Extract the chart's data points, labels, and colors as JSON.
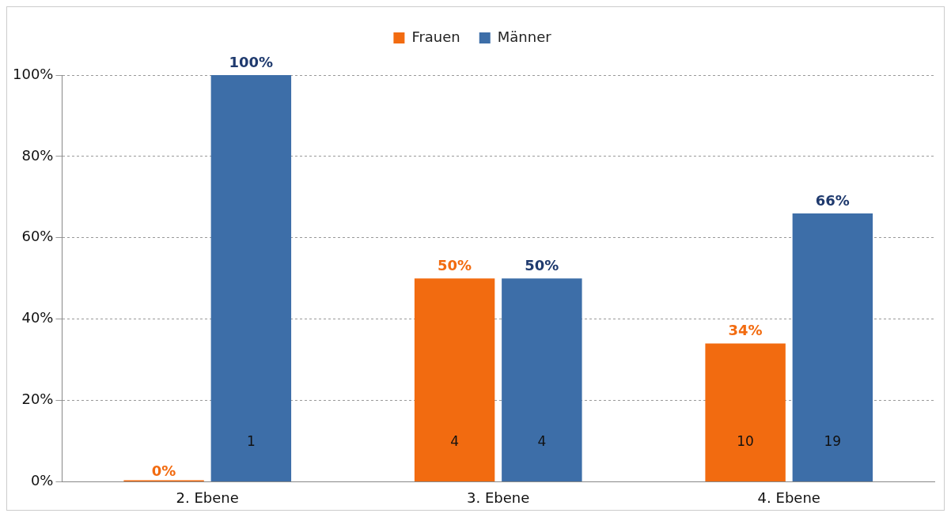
{
  "chart_data": {
    "type": "bar",
    "categories": [
      "2. Ebene",
      "3. Ebene",
      "4. Ebene"
    ],
    "series": [
      {
        "name": "Frauen",
        "color": "#f26b10",
        "values": [
          0,
          50,
          34
        ],
        "value_labels": [
          "0%",
          "50%",
          "34%"
        ]
      },
      {
        "name": "Männer",
        "color": "#3d6ea8",
        "values": [
          100,
          50,
          66
        ],
        "value_labels": [
          "100%",
          "50%",
          "66%"
        ]
      }
    ],
    "ylim": [
      0,
      100
    ],
    "yticks": [
      {
        "value": 0,
        "label": "0%"
      },
      {
        "value": 20,
        "label": "20%"
      },
      {
        "value": 40,
        "label": "40%"
      },
      {
        "value": 60,
        "label": "60%"
      },
      {
        "value": 80,
        "label": "80%"
      },
      {
        "value": 100,
        "label": "100%"
      }
    ],
    "grid": "y",
    "legend": "top",
    "annotations": [
      "1",
      "4",
      "4",
      "10",
      "19"
    ]
  }
}
